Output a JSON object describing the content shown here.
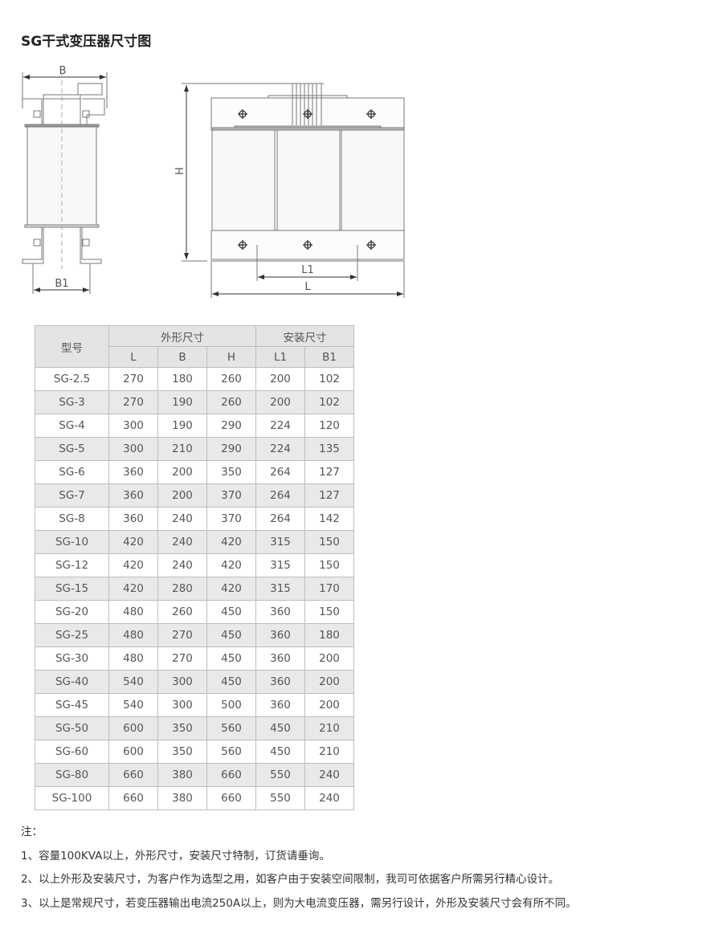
{
  "title": "SG干式变压器尺寸图",
  "diagram": {
    "side_labels": {
      "B": "B",
      "B1": "B1"
    },
    "front_labels": {
      "H": "H",
      "L1": "L1",
      "L": "L"
    }
  },
  "table": {
    "header": {
      "model": "型号",
      "outer_group": "外形尺寸",
      "mount_group": "安装尺寸",
      "cols": [
        "L",
        "B",
        "H",
        "L1",
        "B1"
      ]
    },
    "rows": [
      [
        "SG-2.5",
        "270",
        "180",
        "260",
        "200",
        "102"
      ],
      [
        "SG-3",
        "270",
        "190",
        "260",
        "200",
        "102"
      ],
      [
        "SG-4",
        "300",
        "190",
        "290",
        "224",
        "120"
      ],
      [
        "SG-5",
        "300",
        "210",
        "290",
        "224",
        "135"
      ],
      [
        "SG-6",
        "360",
        "200",
        "350",
        "264",
        "127"
      ],
      [
        "SG-7",
        "360",
        "200",
        "370",
        "264",
        "127"
      ],
      [
        "SG-8",
        "360",
        "240",
        "370",
        "264",
        "142"
      ],
      [
        "SG-10",
        "420",
        "240",
        "420",
        "315",
        "150"
      ],
      [
        "SG-12",
        "420",
        "240",
        "420",
        "315",
        "150"
      ],
      [
        "SG-15",
        "420",
        "280",
        "420",
        "315",
        "170"
      ],
      [
        "SG-20",
        "480",
        "260",
        "450",
        "360",
        "150"
      ],
      [
        "SG-25",
        "480",
        "270",
        "450",
        "360",
        "180"
      ],
      [
        "SG-30",
        "480",
        "270",
        "450",
        "360",
        "200"
      ],
      [
        "SG-40",
        "540",
        "300",
        "450",
        "360",
        "200"
      ],
      [
        "SG-45",
        "540",
        "300",
        "500",
        "360",
        "200"
      ],
      [
        "SG-50",
        "600",
        "350",
        "560",
        "450",
        "210"
      ],
      [
        "SG-60",
        "600",
        "350",
        "560",
        "450",
        "210"
      ],
      [
        "SG-80",
        "660",
        "380",
        "660",
        "550",
        "240"
      ],
      [
        "SG-100",
        "660",
        "380",
        "660",
        "550",
        "240"
      ]
    ]
  },
  "notes": {
    "heading": "注：",
    "items": [
      "1、容量100KVA以上，外形尺寸，安装尺寸特制，订货请垂询。",
      "2、以上外形及安装尺寸，为客户作为选型之用，如客户由于安装空间限制，我司可依据客户所需另行精心设计。",
      "3、以上是常规尺寸，若变压器输出电流250A以上，则为大电流变压器，需另行设计，外形及安装尺寸会有所不同。"
    ]
  }
}
